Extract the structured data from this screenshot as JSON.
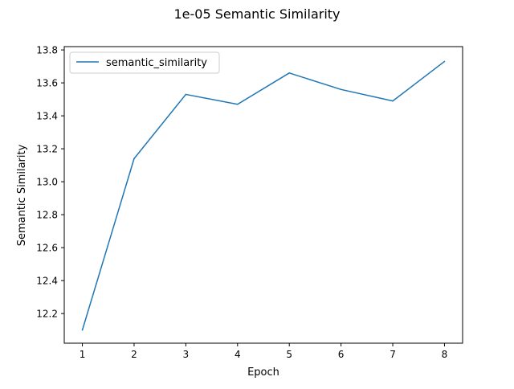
{
  "chart_data": {
    "type": "line",
    "title": "1e-05 Semantic Similarity",
    "xlabel": "Epoch",
    "ylabel": "Semantic Similarity",
    "x": [
      1,
      2,
      3,
      4,
      5,
      6,
      7,
      8
    ],
    "xticks": [
      "1",
      "2",
      "3",
      "4",
      "5",
      "6",
      "7",
      "8"
    ],
    "yticks": [
      "12.2",
      "12.4",
      "12.6",
      "12.8",
      "13.0",
      "13.2",
      "13.4",
      "13.6",
      "13.8"
    ],
    "xlim": [
      0.65,
      8.35
    ],
    "ylim": [
      12.02,
      13.82
    ],
    "grid": false,
    "legend_position": "upper left",
    "series": [
      {
        "name": "semantic_similarity",
        "color": "#1f77b4",
        "values": [
          12.1,
          13.14,
          13.53,
          13.47,
          13.66,
          13.56,
          13.49,
          13.73
        ]
      }
    ]
  }
}
